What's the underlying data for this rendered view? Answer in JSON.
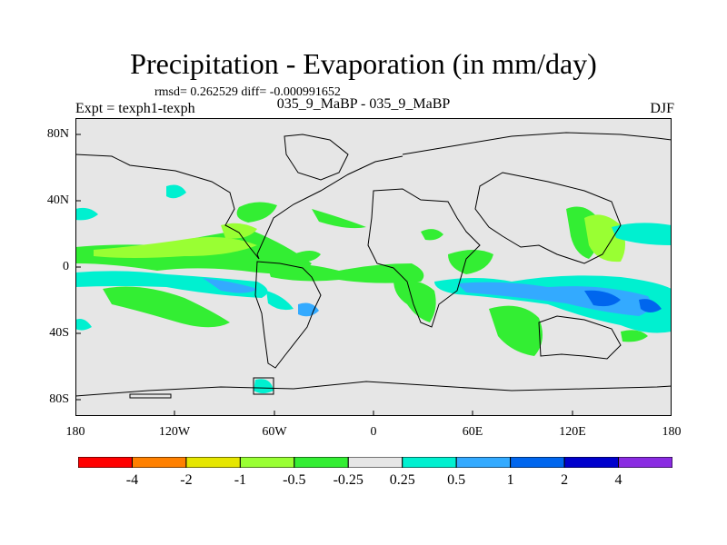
{
  "title": "Precipitation - Evaporation (in mm/day)",
  "stats": "rmsd= 0.262529 diff= -0.000991652",
  "experiment": "Expt = texph1-texph",
  "runs": "035_9_MaBP - 035_9_MaBP",
  "season": "DJF",
  "map": {
    "lon_range": [
      -180,
      180
    ],
    "lat_range": [
      -90,
      90
    ],
    "lon_ticks": [
      "180",
      "120W",
      "60W",
      "0",
      "60E",
      "120E",
      "180"
    ],
    "lat_ticks": [
      "80N",
      "40N",
      "0",
      "40S",
      "80S"
    ],
    "background_color": "#e6e6e6"
  },
  "colorbar": {
    "colors": [
      "#ff0000",
      "#ff8000",
      "#e6e600",
      "#99ff33",
      "#33ee33",
      "#e6e6e6",
      "#00f0d0",
      "#33aaff",
      "#0066ee",
      "#0000cc",
      "#8a2be2"
    ],
    "labels": [
      "-4",
      "-2",
      "-1",
      "-0.5",
      "-0.25",
      "0.25",
      "0.5",
      "1",
      "2",
      "4"
    ]
  }
}
